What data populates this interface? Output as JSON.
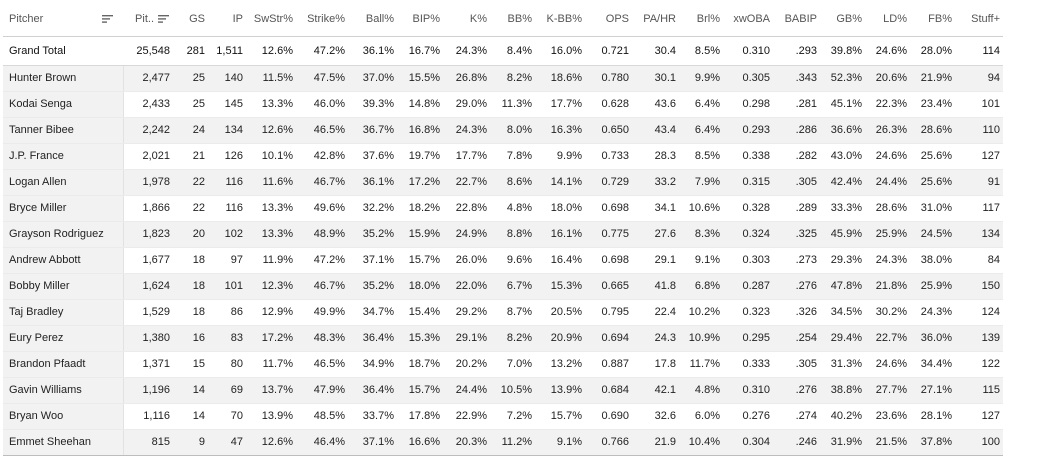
{
  "columns": [
    {
      "key": "pitcher",
      "label": "Pitcher",
      "icon": "sort-icon"
    },
    {
      "key": "pitches",
      "label": "Pit..",
      "icon": "sort-desc-icon"
    },
    {
      "key": "gs",
      "label": "GS"
    },
    {
      "key": "ip",
      "label": "IP"
    },
    {
      "key": "swstr",
      "label": "SwStr%"
    },
    {
      "key": "strike",
      "label": "Strike%"
    },
    {
      "key": "ball",
      "label": "Ball%"
    },
    {
      "key": "bip",
      "label": "BIP%"
    },
    {
      "key": "k",
      "label": "K%"
    },
    {
      "key": "bb",
      "label": "BB%"
    },
    {
      "key": "kbb",
      "label": "K-BB%"
    },
    {
      "key": "ops",
      "label": "OPS"
    },
    {
      "key": "pahr",
      "label": "PA/HR"
    },
    {
      "key": "brl",
      "label": "Brl%"
    },
    {
      "key": "xwoba",
      "label": "xwOBA"
    },
    {
      "key": "babip",
      "label": "BABIP"
    },
    {
      "key": "gb",
      "label": "GB%"
    },
    {
      "key": "ld",
      "label": "LD%"
    },
    {
      "key": "fb",
      "label": "FB%"
    },
    {
      "key": "stuff",
      "label": "Stuff+"
    }
  ],
  "grand_total": [
    "Grand Total",
    "25,548",
    "281",
    "1,511",
    "12.6%",
    "47.2%",
    "36.1%",
    "16.7%",
    "24.3%",
    "8.4%",
    "16.0%",
    "0.721",
    "30.4",
    "8.5%",
    "0.310",
    ".293",
    "39.8%",
    "24.6%",
    "28.0%",
    "114"
  ],
  "rows": [
    [
      "Hunter Brown",
      "2,477",
      "25",
      "140",
      "11.5%",
      "47.5%",
      "37.0%",
      "15.5%",
      "26.8%",
      "8.2%",
      "18.6%",
      "0.780",
      "30.1",
      "9.9%",
      "0.305",
      ".343",
      "52.3%",
      "20.6%",
      "21.9%",
      "94"
    ],
    [
      "Kodai Senga",
      "2,433",
      "25",
      "145",
      "13.3%",
      "46.0%",
      "39.3%",
      "14.8%",
      "29.0%",
      "11.3%",
      "17.7%",
      "0.628",
      "43.6",
      "6.4%",
      "0.298",
      ".281",
      "45.1%",
      "22.3%",
      "23.4%",
      "101"
    ],
    [
      "Tanner Bibee",
      "2,242",
      "24",
      "134",
      "12.6%",
      "46.5%",
      "36.7%",
      "16.8%",
      "24.3%",
      "8.0%",
      "16.3%",
      "0.650",
      "43.4",
      "6.4%",
      "0.293",
      ".286",
      "36.6%",
      "26.3%",
      "28.6%",
      "110"
    ],
    [
      "J.P. France",
      "2,021",
      "21",
      "126",
      "10.1%",
      "42.8%",
      "37.6%",
      "19.7%",
      "17.7%",
      "7.8%",
      "9.9%",
      "0.733",
      "28.3",
      "8.5%",
      "0.338",
      ".282",
      "43.0%",
      "24.6%",
      "25.6%",
      "127"
    ],
    [
      "Logan Allen",
      "1,978",
      "22",
      "116",
      "11.6%",
      "46.7%",
      "36.1%",
      "17.2%",
      "22.7%",
      "8.6%",
      "14.1%",
      "0.729",
      "33.2",
      "7.9%",
      "0.315",
      ".305",
      "42.4%",
      "24.4%",
      "25.6%",
      "91"
    ],
    [
      "Bryce Miller",
      "1,866",
      "22",
      "116",
      "13.3%",
      "49.6%",
      "32.2%",
      "18.2%",
      "22.8%",
      "4.8%",
      "18.0%",
      "0.698",
      "34.1",
      "10.6%",
      "0.328",
      ".289",
      "33.3%",
      "28.6%",
      "31.0%",
      "117"
    ],
    [
      "Grayson Rodriguez",
      "1,823",
      "20",
      "102",
      "13.3%",
      "48.9%",
      "35.2%",
      "15.9%",
      "24.9%",
      "8.8%",
      "16.1%",
      "0.775",
      "27.6",
      "8.3%",
      "0.324",
      ".325",
      "45.9%",
      "25.9%",
      "24.5%",
      "134"
    ],
    [
      "Andrew Abbott",
      "1,677",
      "18",
      "97",
      "11.9%",
      "47.2%",
      "37.1%",
      "15.7%",
      "26.0%",
      "9.6%",
      "16.4%",
      "0.698",
      "29.1",
      "9.1%",
      "0.303",
      ".273",
      "29.3%",
      "24.3%",
      "38.0%",
      "84"
    ],
    [
      "Bobby Miller",
      "1,624",
      "18",
      "101",
      "12.3%",
      "46.7%",
      "35.2%",
      "18.0%",
      "22.0%",
      "6.7%",
      "15.3%",
      "0.665",
      "41.8",
      "6.8%",
      "0.287",
      ".276",
      "47.8%",
      "21.8%",
      "25.9%",
      "150"
    ],
    [
      "Taj Bradley",
      "1,529",
      "18",
      "86",
      "12.9%",
      "49.9%",
      "34.7%",
      "15.4%",
      "29.2%",
      "8.7%",
      "20.5%",
      "0.795",
      "22.4",
      "10.2%",
      "0.323",
      ".326",
      "34.5%",
      "30.2%",
      "24.3%",
      "124"
    ],
    [
      "Eury Perez",
      "1,380",
      "16",
      "83",
      "17.2%",
      "48.3%",
      "36.4%",
      "15.3%",
      "29.1%",
      "8.2%",
      "20.9%",
      "0.694",
      "24.3",
      "10.9%",
      "0.295",
      ".254",
      "29.4%",
      "22.7%",
      "36.0%",
      "139"
    ],
    [
      "Brandon Pfaadt",
      "1,371",
      "15",
      "80",
      "11.7%",
      "46.5%",
      "34.9%",
      "18.7%",
      "20.2%",
      "7.0%",
      "13.2%",
      "0.887",
      "17.8",
      "11.7%",
      "0.333",
      ".305",
      "31.3%",
      "24.6%",
      "34.4%",
      "122"
    ],
    [
      "Gavin Williams",
      "1,196",
      "14",
      "69",
      "13.7%",
      "47.9%",
      "36.4%",
      "15.7%",
      "24.4%",
      "10.5%",
      "13.9%",
      "0.684",
      "42.1",
      "4.8%",
      "0.310",
      ".276",
      "38.8%",
      "27.7%",
      "27.1%",
      "115"
    ],
    [
      "Bryan Woo",
      "1,116",
      "14",
      "70",
      "13.9%",
      "48.5%",
      "33.7%",
      "17.8%",
      "22.9%",
      "7.2%",
      "15.7%",
      "0.690",
      "32.6",
      "6.0%",
      "0.276",
      ".274",
      "40.2%",
      "23.6%",
      "28.1%",
      "127"
    ],
    [
      "Emmet Sheehan",
      "815",
      "9",
      "47",
      "12.6%",
      "46.4%",
      "37.1%",
      "16.6%",
      "20.3%",
      "11.2%",
      "9.1%",
      "0.766",
      "21.9",
      "10.4%",
      "0.304",
      ".246",
      "31.9%",
      "21.5%",
      "37.8%",
      "100"
    ]
  ]
}
